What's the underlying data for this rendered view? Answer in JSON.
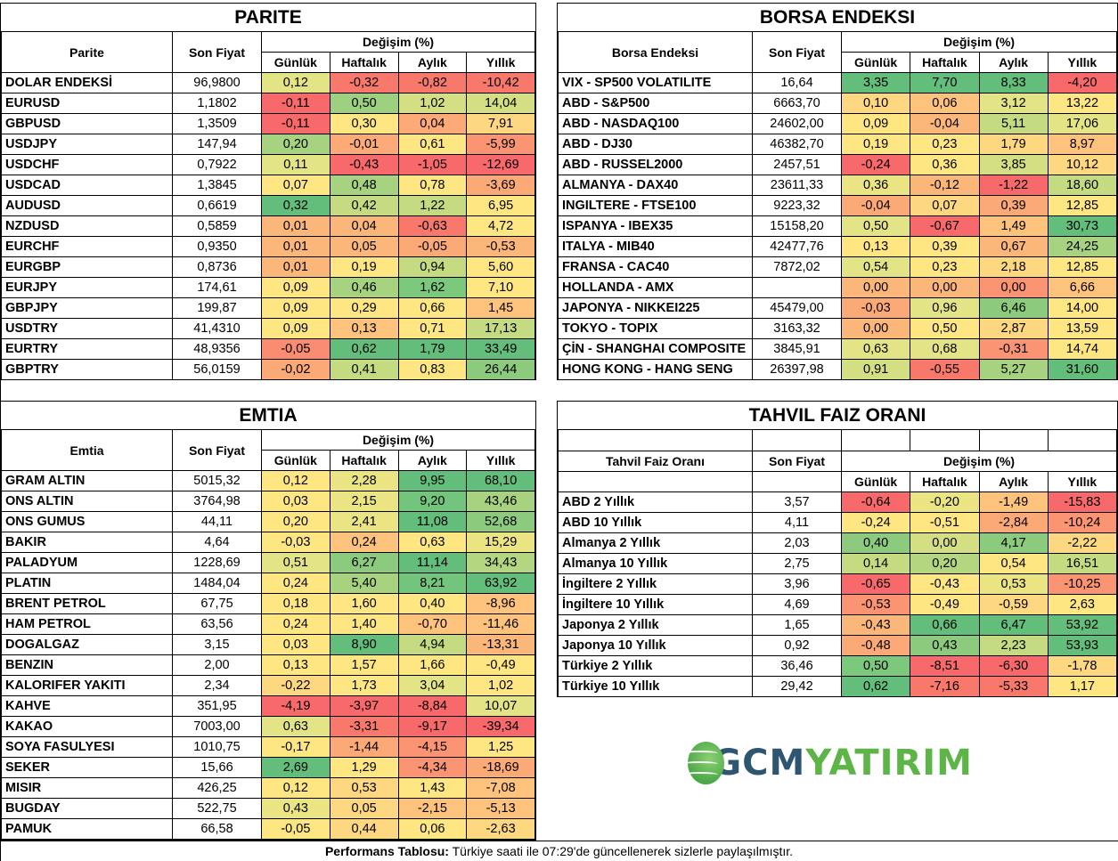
{
  "headers": {
    "son_fiyat": "Son Fiyat",
    "degisim": "Değişim (%)",
    "gunluk": "Günlük",
    "haftalik": "Haftalık",
    "aylik": "Aylık",
    "yillik": "Yıllık"
  },
  "parite": {
    "title": "PARITE",
    "name_header": "Parite",
    "rows": [
      {
        "name": "DOLAR ENDEKSİ",
        "price": "96,9800",
        "values": [
          "0,12",
          "-0,32",
          "-0,82",
          "-10,42"
        ],
        "colors": [
          "#e3e485",
          "#f8796b",
          "#f8796b",
          "#f8796b"
        ]
      },
      {
        "name": "EURUSD",
        "price": "1,1802",
        "values": [
          "-0,11",
          "0,50",
          "1,02",
          "14,04"
        ],
        "colors": [
          "#f8696b",
          "#9dd07f",
          "#d4df83",
          "#d4df83"
        ]
      },
      {
        "name": "GBPUSD",
        "price": "1,3509",
        "values": [
          "-0,11",
          "0,30",
          "0,04",
          "7,91"
        ],
        "colors": [
          "#f8696b",
          "#fee783",
          "#fcaa78",
          "#fed880"
        ]
      },
      {
        "name": "USDJPY",
        "price": "147,94",
        "values": [
          "0,20",
          "-0,01",
          "0,61",
          "-5,99"
        ],
        "colors": [
          "#a7d27f",
          "#fcaa78",
          "#fee783",
          "#fa9473"
        ]
      },
      {
        "name": "USDCHF",
        "price": "0,7922",
        "values": [
          "0,11",
          "-0,43",
          "-1,05",
          "-12,69"
        ],
        "colors": [
          "#e3e485",
          "#f8696b",
          "#f8696b",
          "#f8696b"
        ]
      },
      {
        "name": "USDCAD",
        "price": "1,3845",
        "values": [
          "0,07",
          "0,48",
          "0,78",
          "-3,69"
        ],
        "colors": [
          "#fee783",
          "#a7d27f",
          "#fee783",
          "#fbaa77"
        ]
      },
      {
        "name": "AUDUSD",
        "price": "0,6619",
        "values": [
          "0,32",
          "0,42",
          "1,22",
          "6,95"
        ],
        "colors": [
          "#63be7b",
          "#c4db82",
          "#c4db82",
          "#fee783"
        ]
      },
      {
        "name": "NZDUSD",
        "price": "0,5859",
        "values": [
          "0,01",
          "0,04",
          "-0,63",
          "4,72"
        ],
        "colors": [
          "#fbb77a",
          "#fbb77a",
          "#f8796b",
          "#fee783"
        ]
      },
      {
        "name": "EURCHF",
        "price": "0,9350",
        "values": [
          "0,01",
          "0,05",
          "-0,05",
          "-0,53"
        ],
        "colors": [
          "#fbb77a",
          "#fbb77a",
          "#fbaa77",
          "#fbb77a"
        ]
      },
      {
        "name": "EURGBP",
        "price": "0,8736",
        "values": [
          "0,01",
          "0,19",
          "0,94",
          "5,60"
        ],
        "colors": [
          "#fbb77a",
          "#fee783",
          "#c4db82",
          "#fee783"
        ]
      },
      {
        "name": "EURJPY",
        "price": "174,61",
        "values": [
          "0,09",
          "0,46",
          "1,62",
          "7,10"
        ],
        "colors": [
          "#fee783",
          "#a7d27f",
          "#7cc87d",
          "#fee783"
        ]
      },
      {
        "name": "GBPJPY",
        "price": "199,87",
        "values": [
          "0,09",
          "0,29",
          "0,66",
          "1,45"
        ],
        "colors": [
          "#fee783",
          "#fee783",
          "#fee783",
          "#fdc37d"
        ]
      },
      {
        "name": "USDTRY",
        "price": "41,4310",
        "values": [
          "0,09",
          "0,13",
          "0,71",
          "17,13"
        ],
        "colors": [
          "#fee783",
          "#fdc37d",
          "#fee783",
          "#c4db82"
        ]
      },
      {
        "name": "EURTRY",
        "price": "48,9356",
        "values": [
          "-0,05",
          "0,62",
          "1,79",
          "33,49"
        ],
        "colors": [
          "#fa8c72",
          "#63be7b",
          "#63be7b",
          "#63be7b"
        ]
      },
      {
        "name": "GBPTRY",
        "price": "56,0159",
        "values": [
          "-0,02",
          "0,41",
          "0,83",
          "26,44"
        ],
        "colors": [
          "#fbaa77",
          "#c4db82",
          "#fee783",
          "#8ccb7e"
        ]
      }
    ]
  },
  "borsa": {
    "title": "BORSA ENDEKSI",
    "name_header": "Borsa Endeksi",
    "rows": [
      {
        "name": "VIX  - SP500 VOLATILITE",
        "price": "16,64",
        "values": [
          "3,35",
          "7,70",
          "8,33",
          "-4,20"
        ],
        "colors": [
          "#63be7b",
          "#63be7b",
          "#63be7b",
          "#f8696b"
        ]
      },
      {
        "name": "ABD - S&P500",
        "price": "6663,70",
        "values": [
          "0,10",
          "0,06",
          "3,12",
          "13,22"
        ],
        "colors": [
          "#fed880",
          "#fdc37d",
          "#e3e485",
          "#fee783"
        ]
      },
      {
        "name": "ABD - NASDAQ100",
        "price": "24602,00",
        "values": [
          "0,09",
          "-0,04",
          "5,11",
          "17,06"
        ],
        "colors": [
          "#fee783",
          "#fbb77a",
          "#c4db82",
          "#e3e485"
        ]
      },
      {
        "name": "ABD - DJ30",
        "price": "46382,70",
        "values": [
          "0,19",
          "0,23",
          "1,79",
          "8,97"
        ],
        "colors": [
          "#fee783",
          "#fee783",
          "#fed880",
          "#fdc37d"
        ]
      },
      {
        "name": "ABD - RUSSEL2000",
        "price": "2457,51",
        "values": [
          "-0,24",
          "0,36",
          "3,85",
          "10,12"
        ],
        "colors": [
          "#f8696b",
          "#fee783",
          "#d4df83",
          "#fed880"
        ]
      },
      {
        "name": "ALMANYA - DAX40",
        "price": "23611,33",
        "values": [
          "0,36",
          "-0,12",
          "-1,22",
          "18,60"
        ],
        "colors": [
          "#eae582",
          "#fbb77a",
          "#f8696b",
          "#c4db82"
        ]
      },
      {
        "name": "INGILTERE - FTSE100",
        "price": "9223,32",
        "values": [
          "-0,04",
          "0,07",
          "0,39",
          "12,85"
        ],
        "colors": [
          "#fbaa77",
          "#fed880",
          "#fbaa77",
          "#fee783"
        ]
      },
      {
        "name": "ISPANYA - IBEX35",
        "price": "15158,20",
        "values": [
          "0,50",
          "-0,67",
          "1,49",
          "30,73"
        ],
        "colors": [
          "#e3e485",
          "#f8696b",
          "#fdc37d",
          "#63be7b"
        ]
      },
      {
        "name": "ITALYA - MIB40",
        "price": "42477,76",
        "values": [
          "0,13",
          "0,39",
          "0,67",
          "24,25"
        ],
        "colors": [
          "#fee783",
          "#fee783",
          "#fbb77a",
          "#a7d27f"
        ]
      },
      {
        "name": "FRANSA - CAC40",
        "price": "7872,02",
        "values": [
          "0,54",
          "0,23",
          "2,18",
          "12,85"
        ],
        "colors": [
          "#e3e485",
          "#fee783",
          "#fed880",
          "#fee783"
        ]
      },
      {
        "name": "HOLLANDA - AMX",
        "price": "",
        "values": [
          "0,00",
          "0,00",
          "0,00",
          "6,66"
        ],
        "colors": [
          "#fbb77a",
          "#fbb77a",
          "#fa9473",
          "#fdc37d"
        ]
      },
      {
        "name": "JAPONYA - NIKKEI225",
        "price": "45479,00",
        "values": [
          "-0,03",
          "0,96",
          "6,46",
          "14,00"
        ],
        "colors": [
          "#fbaa77",
          "#e3e485",
          "#8ccb7e",
          "#fee783"
        ]
      },
      {
        "name": "TOKYO - TOPIX",
        "price": "3163,32",
        "values": [
          "0,00",
          "0,50",
          "2,87",
          "13,59"
        ],
        "colors": [
          "#fbb77a",
          "#fee783",
          "#fed880",
          "#fee783"
        ]
      },
      {
        "name": "ÇİN - SHANGHAI COMPOSITE",
        "price": "3845,91",
        "values": [
          "0,63",
          "0,68",
          "-0,31",
          "14,74"
        ],
        "colors": [
          "#e3e485",
          "#e3e485",
          "#fa9473",
          "#fee783"
        ]
      },
      {
        "name": "HONG KONG - HANG SENG",
        "price": "26397,98",
        "values": [
          "0,91",
          "-0,55",
          "5,27",
          "31,60"
        ],
        "colors": [
          "#d4df83",
          "#f8796b",
          "#a7d27f",
          "#63be7b"
        ]
      }
    ]
  },
  "emtia": {
    "title": "EMTIA",
    "name_header": "Emtia",
    "rows": [
      {
        "name": "GRAM ALTIN",
        "price": "5015,32",
        "values": [
          "0,12",
          "2,28",
          "9,95",
          "68,10"
        ],
        "colors": [
          "#fee783",
          "#eae582",
          "#63be7b",
          "#63be7b"
        ]
      },
      {
        "name": "ONS ALTIN",
        "price": "3764,98",
        "values": [
          "0,03",
          "2,15",
          "9,20",
          "43,46"
        ],
        "colors": [
          "#fee783",
          "#eae582",
          "#73c47c",
          "#a7d27f"
        ]
      },
      {
        "name": "ONS GUMUS",
        "price": "44,11",
        "values": [
          "0,20",
          "2,41",
          "11,08",
          "52,68"
        ],
        "colors": [
          "#fee783",
          "#eae582",
          "#63be7b",
          "#8ccb7e"
        ]
      },
      {
        "name": "BAKIR",
        "price": "4,64",
        "values": [
          "-0,03",
          "0,24",
          "0,63",
          "15,29"
        ],
        "colors": [
          "#fee783",
          "#fdc37d",
          "#fee783",
          "#eae582"
        ]
      },
      {
        "name": "PALADYUM",
        "price": "1228,69",
        "values": [
          "0,51",
          "6,27",
          "11,14",
          "34,43"
        ],
        "colors": [
          "#e3e485",
          "#8ccb7e",
          "#63be7b",
          "#b4d680"
        ]
      },
      {
        "name": "PLATIN",
        "price": "1484,04",
        "values": [
          "0,24",
          "5,40",
          "8,21",
          "63,92"
        ],
        "colors": [
          "#fee783",
          "#a7d27f",
          "#73c47c",
          "#63be7b"
        ]
      },
      {
        "name": "BRENT PETROL",
        "price": "67,75",
        "values": [
          "0,18",
          "1,60",
          "0,40",
          "-8,96"
        ],
        "colors": [
          "#fee783",
          "#fee783",
          "#fee783",
          "#fdc37d"
        ]
      },
      {
        "name": "HAM PETROL",
        "price": "63,56",
        "values": [
          "0,24",
          "1,40",
          "-0,70",
          "-11,46"
        ],
        "colors": [
          "#fee783",
          "#fee783",
          "#fdc37d",
          "#fdc37d"
        ]
      },
      {
        "name": "DOGALGAZ",
        "price": "3,15",
        "values": [
          "0,03",
          "8,90",
          "4,94",
          "-13,31"
        ],
        "colors": [
          "#fee783",
          "#63be7b",
          "#c4db82",
          "#fbb77a"
        ]
      },
      {
        "name": "BENZIN",
        "price": "2,00",
        "values": [
          "0,13",
          "1,57",
          "1,66",
          "-0,49"
        ],
        "colors": [
          "#fee783",
          "#fee783",
          "#fee783",
          "#fee783"
        ]
      },
      {
        "name": "KALORIFER YAKITI",
        "price": "2,34",
        "values": [
          "-0,22",
          "1,73",
          "3,04",
          "1,02"
        ],
        "colors": [
          "#fed880",
          "#fee783",
          "#e3e485",
          "#fee783"
        ]
      },
      {
        "name": "KAHVE",
        "price": "351,95",
        "values": [
          "-4,19",
          "-3,97",
          "-8,84",
          "10,07"
        ],
        "colors": [
          "#f8696b",
          "#f8696b",
          "#f8696b",
          "#e3e485"
        ]
      },
      {
        "name": "KAKAO",
        "price": "7003,00",
        "values": [
          "0,63",
          "-3,31",
          "-9,17",
          "-39,34"
        ],
        "colors": [
          "#e3e485",
          "#f8796b",
          "#f8696b",
          "#f8696b"
        ]
      },
      {
        "name": "SOYA FASULYESI",
        "price": "1010,75",
        "values": [
          "-0,17",
          "-1,44",
          "-4,15",
          "1,25"
        ],
        "colors": [
          "#fee783",
          "#fbaa77",
          "#fa9473",
          "#fee783"
        ]
      },
      {
        "name": "SEKER",
        "price": "15,66",
        "values": [
          "2,69",
          "1,29",
          "-4,34",
          "-18,69"
        ],
        "colors": [
          "#63be7b",
          "#fee783",
          "#fa9473",
          "#fbaa77"
        ]
      },
      {
        "name": "MISIR",
        "price": "426,25",
        "values": [
          "0,12",
          "0,53",
          "1,43",
          "-7,08"
        ],
        "colors": [
          "#fee783",
          "#fed880",
          "#fee783",
          "#fdc37d"
        ]
      },
      {
        "name": "BUGDAY",
        "price": "522,75",
        "values": [
          "0,43",
          "0,05",
          "-2,15",
          "-5,13"
        ],
        "colors": [
          "#eae582",
          "#fed880",
          "#fdc37d",
          "#fdc37d"
        ]
      },
      {
        "name": "PAMUK",
        "price": "66,58",
        "values": [
          "-0,05",
          "0,44",
          "0,06",
          "-2,63"
        ],
        "colors": [
          "#fee783",
          "#fed880",
          "#fee783",
          "#fed880"
        ]
      }
    ]
  },
  "tahvil": {
    "title": "TAHVIL FAIZ ORANI",
    "name_header": "Tahvil Faiz Oranı",
    "rows": [
      {
        "name": "ABD 2 Yıllık",
        "price": "3,57",
        "values": [
          "-0,64",
          "-0,20",
          "-1,49",
          "-15,83"
        ],
        "colors": [
          "#f8696b",
          "#eae582",
          "#fdc37d",
          "#f8696b"
        ]
      },
      {
        "name": "ABD 10 Yıllık",
        "price": "4,11",
        "values": [
          "-0,24",
          "-0,51",
          "-2,84",
          "-10,24"
        ],
        "colors": [
          "#fee783",
          "#fee783",
          "#fbaa77",
          "#fa9473"
        ]
      },
      {
        "name": "Almanya 2 Yıllık",
        "price": "2,03",
        "values": [
          "0,40",
          "0,00",
          "4,17",
          "-2,22"
        ],
        "colors": [
          "#8ccb7e",
          "#d4df83",
          "#8ccb7e",
          "#fed880"
        ]
      },
      {
        "name": "Almanya 10 Yıllık",
        "price": "2,75",
        "values": [
          "0,14",
          "0,20",
          "0,54",
          "16,51"
        ],
        "colors": [
          "#c4db82",
          "#b4d680",
          "#fee783",
          "#c4db82"
        ]
      },
      {
        "name": "İngiltere 2 Yıllık",
        "price": "3,96",
        "values": [
          "-0,65",
          "-0,43",
          "0,53",
          "-10,25"
        ],
        "colors": [
          "#f8696b",
          "#fee783",
          "#eae582",
          "#fa9473"
        ]
      },
      {
        "name": "İngiltere 10 Yıllık",
        "price": "4,69",
        "values": [
          "-0,53",
          "-0,49",
          "-0,59",
          "2,63"
        ],
        "colors": [
          "#fa9473",
          "#fee783",
          "#fed880",
          "#fee783"
        ]
      },
      {
        "name": "Japonya 2 Yıllık",
        "price": "1,65",
        "values": [
          "-0,43",
          "0,66",
          "6,47",
          "53,92"
        ],
        "colors": [
          "#fbb77a",
          "#63be7b",
          "#63be7b",
          "#63be7b"
        ]
      },
      {
        "name": "Japonya 10 Yıllık",
        "price": "0,92",
        "values": [
          "-0,48",
          "0,43",
          "2,23",
          "53,93"
        ],
        "colors": [
          "#fbaa77",
          "#8ccb7e",
          "#c4db82",
          "#63be7b"
        ]
      },
      {
        "name": "Türkiye 2 Yıllık",
        "price": "36,46",
        "values": [
          "0,50",
          "-8,51",
          "-6,30",
          "-1,78"
        ],
        "colors": [
          "#7cc87d",
          "#f8696b",
          "#f8696b",
          "#fed880"
        ]
      },
      {
        "name": "Türkiye 10 Yıllık",
        "price": "29,42",
        "values": [
          "0,62",
          "-7,16",
          "-5,33",
          "1,17"
        ],
        "colors": [
          "#63be7b",
          "#f8796b",
          "#f8796b",
          "#fee783"
        ]
      }
    ]
  },
  "logo": {
    "part1": "GCM",
    "part2": "YATIRIM"
  },
  "footer": {
    "bold": "Performans Tablosu:",
    "text": " Türkiye saati ile 07:29'de güncellenerek sizlerle paylaşılmıştır."
  }
}
